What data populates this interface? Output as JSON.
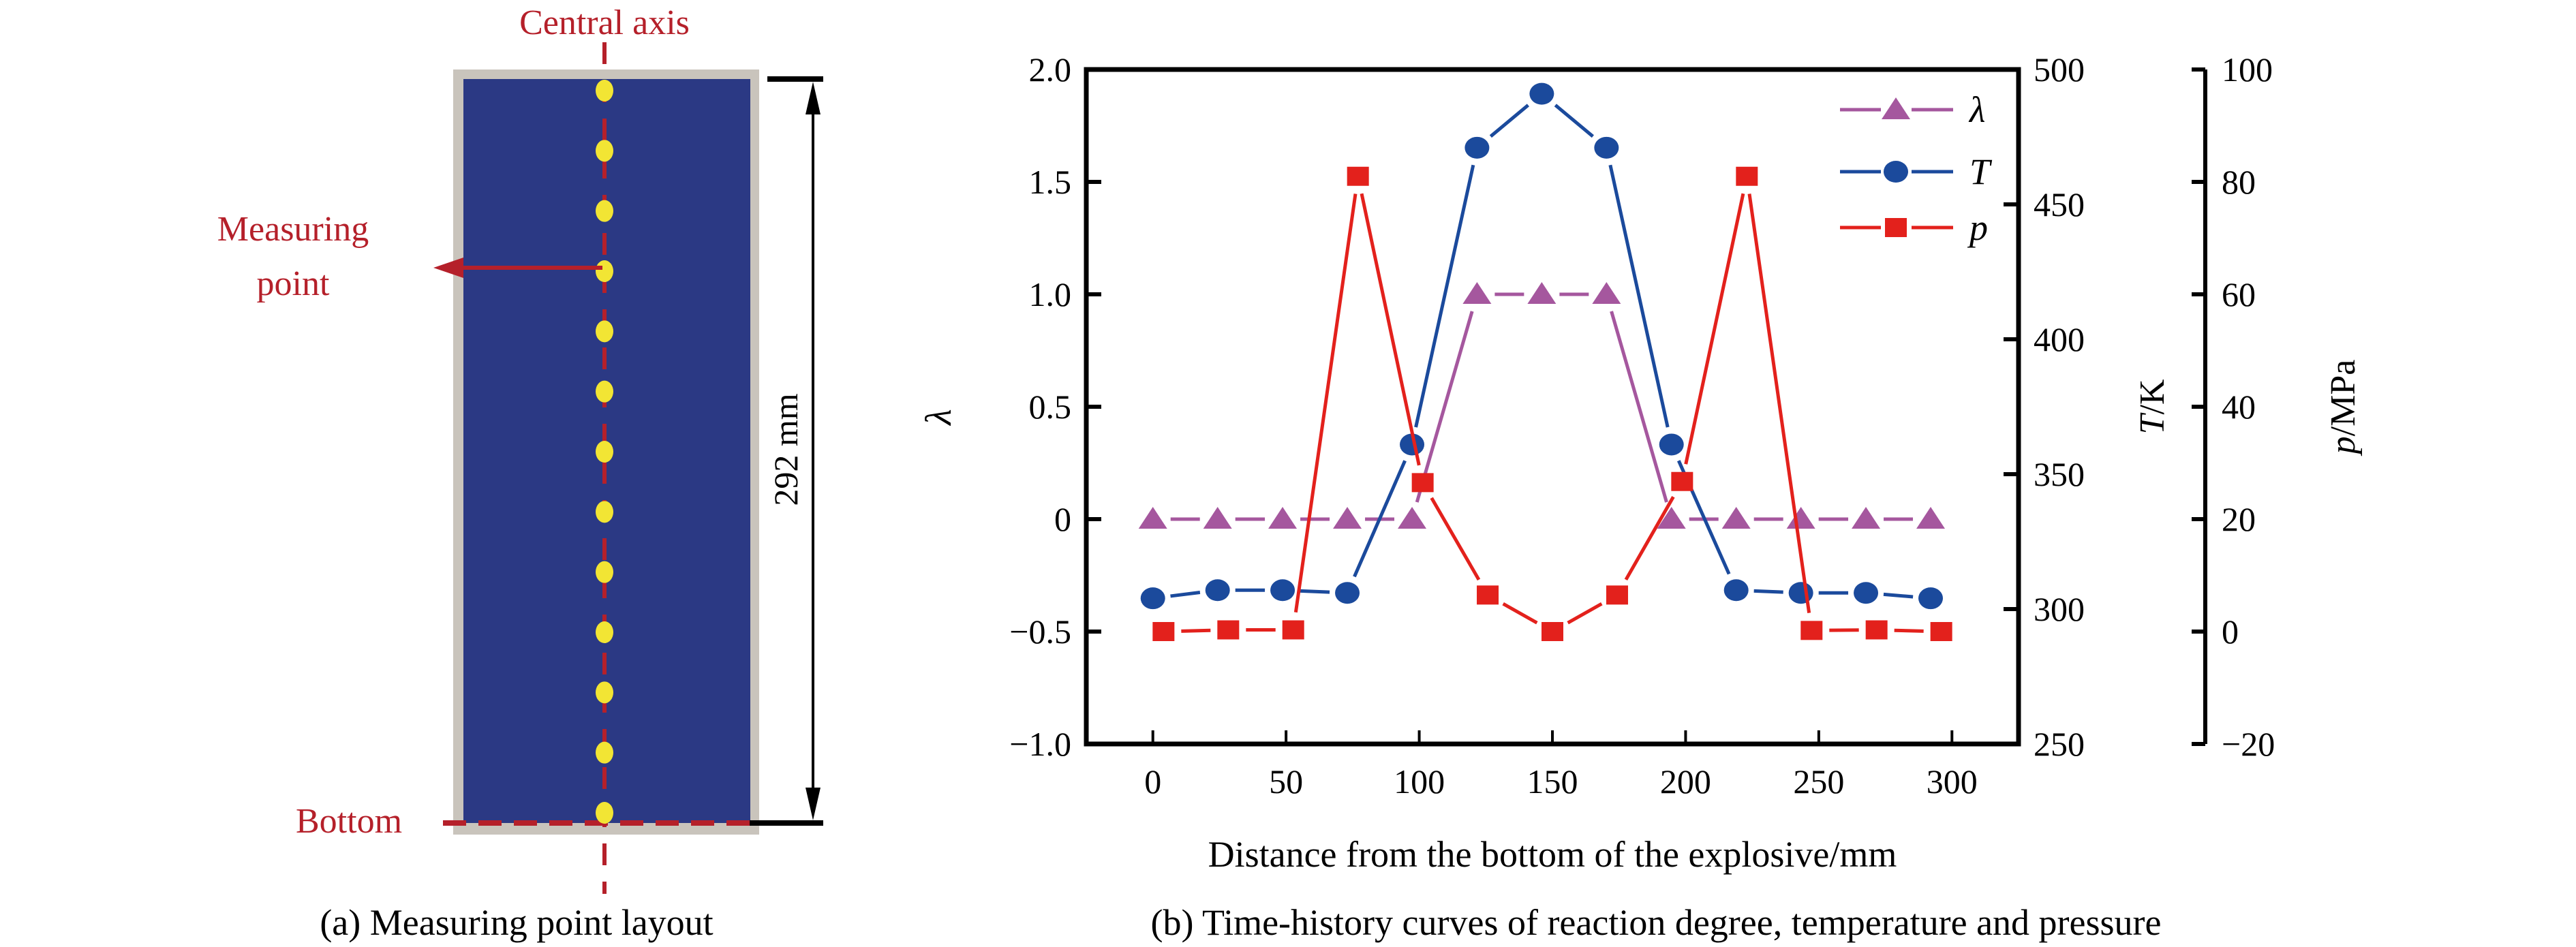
{
  "panel_a": {
    "central_axis_label": "Central axis",
    "measuring_point_label_line1": "Measuring",
    "measuring_point_label_line2": "point",
    "bottom_label": "Bottom",
    "dimension_label": "292 mm",
    "caption": "(a) Measuring point layout",
    "measuring_point_count": 13,
    "colors": {
      "casing": "#c9c4bc",
      "explosive": "#2b3984",
      "axis_line": "#b5202a",
      "point": "#f2e534",
      "annotation_text": "#b5202a"
    }
  },
  "panel_b": {
    "caption": "(b) Time-history curves of reaction degree, temperature and pressure"
  },
  "chart_data": {
    "type": "line",
    "title": "",
    "xlabel": "Distance from the bottom of the explosive/mm",
    "xlim": [
      -25,
      325
    ],
    "xticks": [
      "0",
      "50",
      "100",
      "150",
      "200",
      "250",
      "300"
    ],
    "y_axes": [
      {
        "id": "lambda",
        "label": "λ",
        "side": "left",
        "ylim": [
          -1.0,
          2.0
        ],
        "ticks": [
          "−1.0",
          "−0.5",
          "0",
          "0.5",
          "1.0",
          "1.5",
          "2.0"
        ]
      },
      {
        "id": "T",
        "label_italic": "T",
        "label_unit": "/K",
        "side": "right",
        "ylim": [
          250,
          500
        ],
        "ticks": [
          "250",
          "300",
          "350",
          "400",
          "450",
          "500"
        ]
      },
      {
        "id": "p",
        "label_italic": "p",
        "label_unit": "/MPa",
        "side": "right-outer",
        "ylim": [
          -20,
          100
        ],
        "ticks": [
          "−20",
          "0",
          "20",
          "40",
          "60",
          "80",
          "100"
        ]
      }
    ],
    "legend": {
      "placement": "top-right",
      "entries": [
        "λ",
        "T",
        "p"
      ]
    },
    "grid": false,
    "series": [
      {
        "name": "λ",
        "axis": "lambda",
        "marker": "triangle",
        "color": "#a5579e",
        "x": [
          0,
          24.3,
          48.7,
          73,
          97.3,
          121.7,
          146,
          170.3,
          194.7,
          219,
          243.3,
          267.7,
          292
        ],
        "values": [
          0,
          0,
          0,
          0,
          0,
          1.0,
          1.0,
          1.0,
          0,
          0,
          0,
          0,
          0
        ]
      },
      {
        "name": "T",
        "axis": "T",
        "marker": "circle",
        "color": "#1b4a9c",
        "x": [
          0,
          24.3,
          48.7,
          73,
          97.3,
          121.7,
          146,
          170.3,
          194.7,
          219,
          243.3,
          267.7,
          292
        ],
        "values": [
          304,
          307,
          307,
          306,
          361,
          471,
          491,
          471,
          361,
          307,
          306,
          306,
          304
        ]
      },
      {
        "name": "p",
        "axis": "p",
        "marker": "square",
        "color": "#e3211c",
        "x": [
          4,
          28.3,
          52.7,
          77,
          101.3,
          125.7,
          150,
          174.3,
          198.7,
          223,
          247.3,
          271.7,
          296
        ],
        "values": [
          0,
          0.3,
          0.3,
          81,
          26.5,
          6.5,
          0,
          6.5,
          26.7,
          81,
          0.2,
          0.3,
          0
        ]
      }
    ]
  }
}
